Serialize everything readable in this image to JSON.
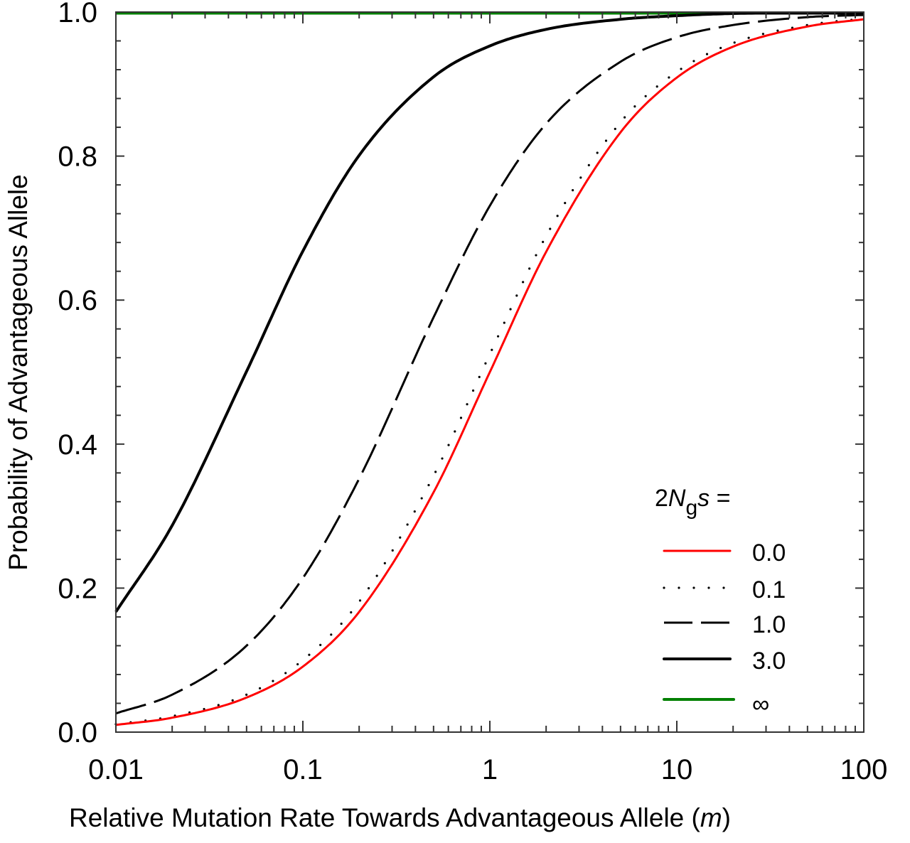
{
  "chart_data": {
    "type": "line",
    "title": "",
    "xlabel": "Relative Mutation Rate Towards Advantageous Allele (",
    "xlabel_var": "m",
    "xlabel_close": ")",
    "ylabel": "Probability of Advantageous Allele",
    "xscale": "log",
    "xlim": [
      0.01,
      100
    ],
    "ylim": [
      0.0,
      1.0
    ],
    "x_ticks": [
      {
        "value": 0.01,
        "label": "0.01"
      },
      {
        "value": 0.1,
        "label": "0.1"
      },
      {
        "value": 1,
        "label": "1"
      },
      {
        "value": 10,
        "label": "10"
      },
      {
        "value": 100,
        "label": "100"
      }
    ],
    "y_ticks": [
      {
        "value": 0.0,
        "label": "0.0"
      },
      {
        "value": 0.2,
        "label": "0.2"
      },
      {
        "value": 0.4,
        "label": "0.4"
      },
      {
        "value": 0.6,
        "label": "0.6"
      },
      {
        "value": 0.8,
        "label": "0.8"
      },
      {
        "value": 1.0,
        "label": "1.0"
      }
    ],
    "grid": false,
    "legend": {
      "placement": "bottom-right",
      "title_prefix": "2",
      "title_N": "N",
      "title_sub": "g",
      "title_s": "s",
      "title_suffix": " ="
    },
    "x": [
      0.01,
      0.02,
      0.05,
      0.1,
      0.2,
      0.5,
      1,
      2,
      5,
      10,
      20,
      50,
      100
    ],
    "series": [
      {
        "name": "0.0",
        "color": "#ff0000",
        "style": "solid",
        "values": [
          0.01,
          0.02,
          0.048,
          0.091,
          0.167,
          0.333,
          0.5,
          0.667,
          0.833,
          0.909,
          0.952,
          0.98,
          0.99
        ]
      },
      {
        "name": "0.1",
        "color": "#000000",
        "style": "dotted",
        "values": [
          0.011,
          0.022,
          0.052,
          0.1,
          0.181,
          0.356,
          0.525,
          0.689,
          0.847,
          0.917,
          0.957,
          0.982,
          0.991
        ]
      },
      {
        "name": "1.0",
        "color": "#000000",
        "style": "dashed",
        "values": [
          0.026,
          0.052,
          0.12,
          0.214,
          0.352,
          0.576,
          0.731,
          0.845,
          0.931,
          0.965,
          0.982,
          0.993,
          0.996
        ]
      },
      {
        "name": "3.0",
        "color": "#000000",
        "style": "solid",
        "values": [
          0.167,
          0.287,
          0.501,
          0.668,
          0.801,
          0.91,
          0.953,
          0.976,
          0.99,
          0.995,
          0.998,
          0.999,
          1.0
        ]
      },
      {
        "name": "∞",
        "color": "#008000",
        "style": "solid",
        "values": [
          1.0,
          1.0,
          1.0,
          1.0,
          1.0,
          1.0,
          1.0,
          1.0,
          1.0,
          1.0,
          1.0,
          1.0,
          1.0
        ]
      }
    ]
  }
}
